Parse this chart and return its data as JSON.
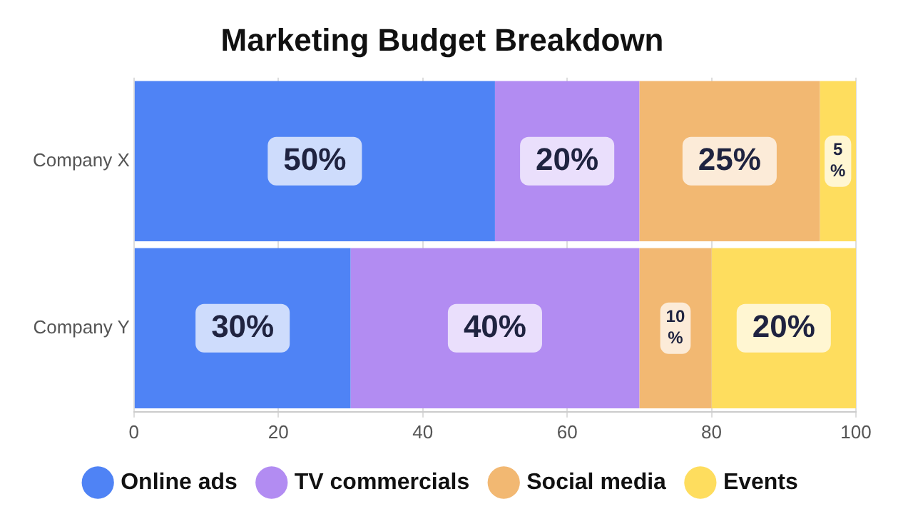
{
  "chart_data": {
    "type": "bar",
    "title": "Marketing Budget Breakdown",
    "orientation": "horizontal",
    "stacked": true,
    "categories": [
      "Company X",
      "Company Y"
    ],
    "series": [
      {
        "name": "Online ads",
        "color": "#4f83f5",
        "values": [
          50,
          30
        ],
        "value_labels": [
          "50%",
          "30%"
        ]
      },
      {
        "name": "TV commercials",
        "color": "#b28cf2",
        "values": [
          20,
          40
        ],
        "value_labels": [
          "20%",
          "40%"
        ]
      },
      {
        "name": "Social media",
        "color": "#f2b872",
        "values": [
          25,
          10
        ],
        "value_labels": [
          "25%",
          "10%"
        ]
      },
      {
        "name": "Events",
        "color": "#fedd5e",
        "values": [
          5,
          20
        ],
        "value_labels": [
          "5%",
          "20%"
        ]
      }
    ],
    "xlim": [
      0,
      100
    ],
    "xticks": [
      0,
      20,
      40,
      60,
      80,
      100
    ],
    "grid": "x",
    "legend": "bottom"
  }
}
